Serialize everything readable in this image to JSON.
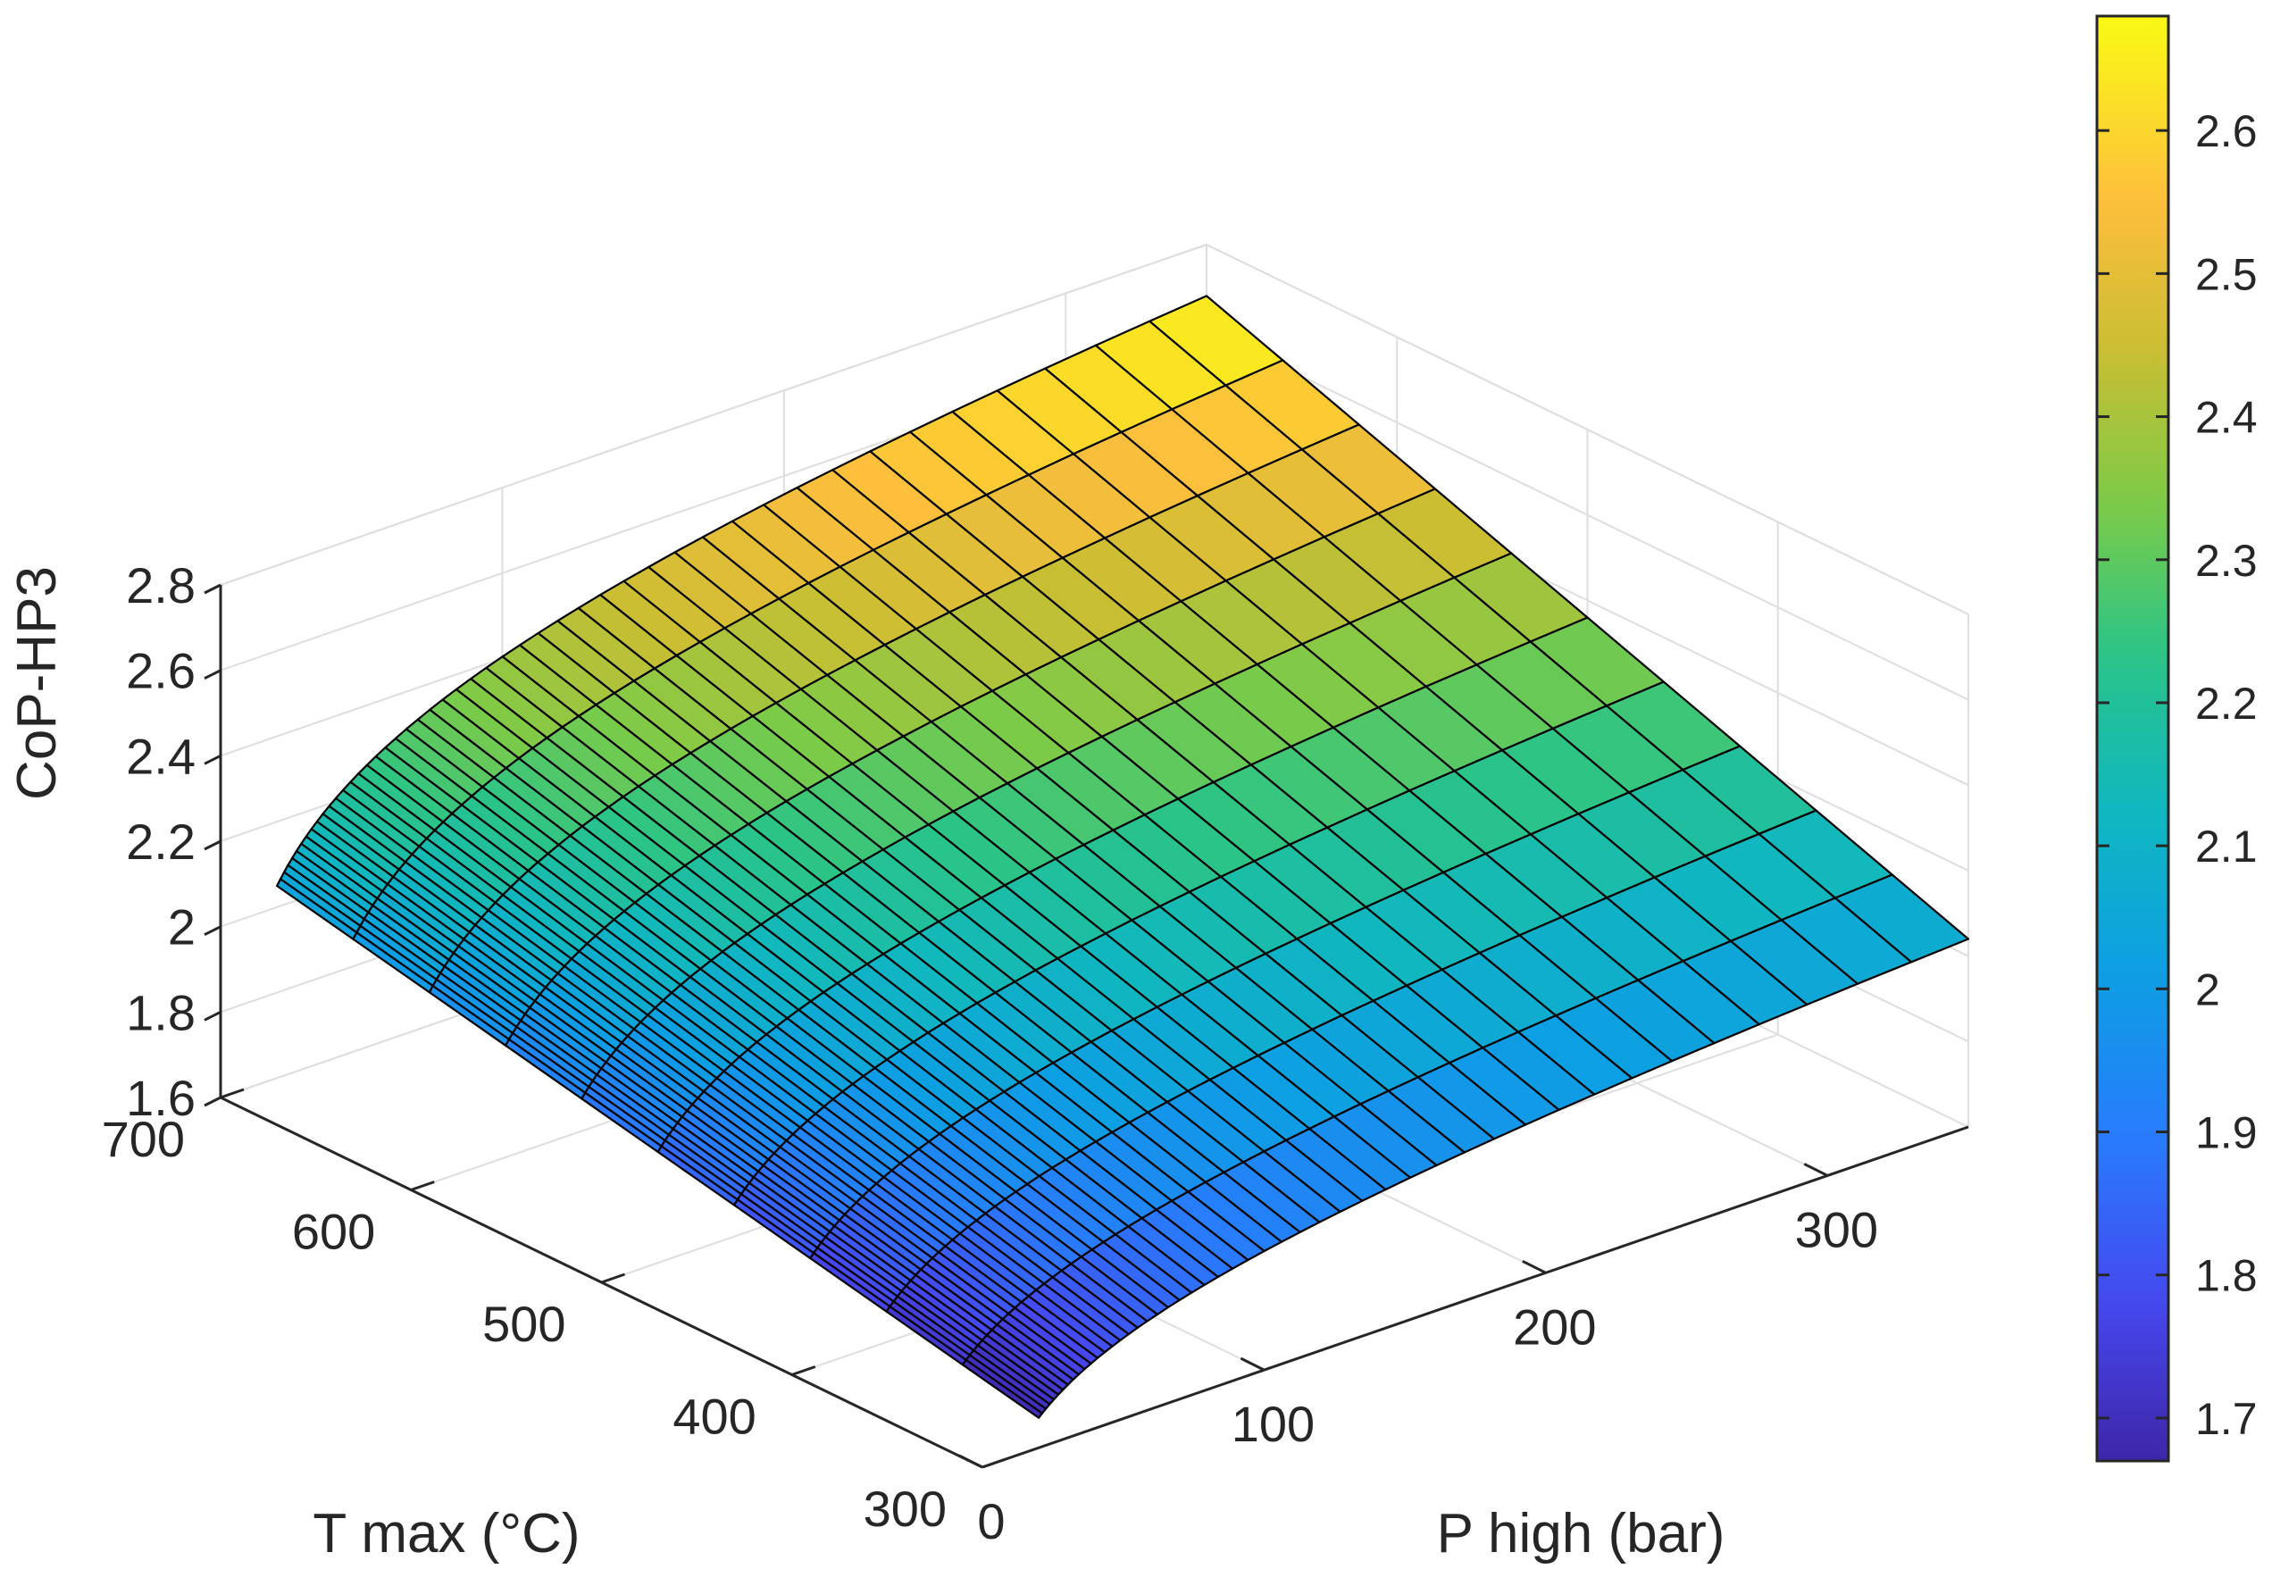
{
  "chart_data": {
    "type": "surface",
    "title": "",
    "xlabel": "P high (bar)",
    "ylabel": "T max (°C)",
    "zlabel": "CoP-HP3",
    "xlim": [
      0,
      350
    ],
    "ylim": [
      300,
      700
    ],
    "zlim": [
      1.6,
      2.8
    ],
    "xticks": [
      0,
      100,
      200,
      300
    ],
    "yticks": [
      300,
      400,
      500,
      600,
      700
    ],
    "zticks": [
      1.6,
      1.8,
      2,
      2.2,
      2.4,
      2.6,
      2.8
    ],
    "xtick_labels": [
      "0",
      "100",
      "200",
      "300"
    ],
    "ytick_labels": [
      "300",
      "400",
      "500",
      "600",
      "700"
    ],
    "ztick_labels": [
      "1.6",
      "1.8",
      "2",
      "2.2",
      "2.4",
      "2.6",
      "2.8"
    ],
    "grid": true,
    "colormap": "parula",
    "colorbar": {
      "placement": "right",
      "range": [
        1.67,
        2.68
      ],
      "ticks": [
        1.7,
        1.8,
        1.9,
        2,
        2.1,
        2.2,
        2.3,
        2.4,
        2.5,
        2.6
      ],
      "tick_labels": [
        "1.7",
        "1.8",
        "1.9",
        "2",
        "2.1",
        "2.2",
        "2.3",
        "2.4",
        "2.5",
        "2.6"
      ]
    },
    "surface": {
      "p_range": [
        20,
        350
      ],
      "t_range": [
        300,
        700
      ],
      "corner_values": {
        "p20_t300": 1.67,
        "p20_t700": 2.05,
        "p350_t300": 2.04,
        "p350_t700": 2.68
      }
    }
  }
}
